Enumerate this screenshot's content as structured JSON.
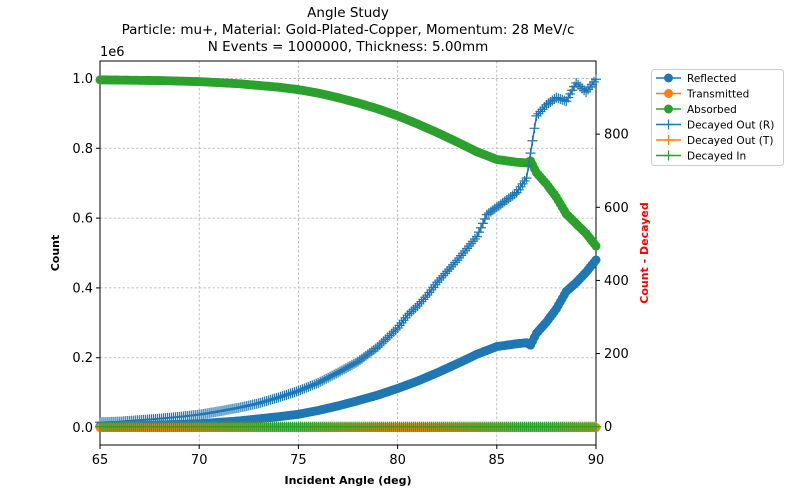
{
  "chart_data": {
    "type": "line",
    "title_lines": [
      "Angle Study",
      "Particle: mu+, Material: Gold-Plated-Copper, Momentum: 28 MeV/c",
      "N Events = 1000000, Thickness: 5.00mm"
    ],
    "xlabel": "Incident Angle (deg)",
    "ylabel_left": "Count",
    "ylabel_right": "Count - Decayed",
    "y_left_offset_label": "1e6",
    "xlim": [
      65,
      90
    ],
    "ylim_left": [
      -0.05,
      1.05
    ],
    "ylim_right": [
      -50,
      1000
    ],
    "x_ticks": [
      "65",
      "70",
      "75",
      "80",
      "85",
      "90"
    ],
    "y_left_ticks": [
      "0.0",
      "0.2",
      "0.4",
      "0.6",
      "0.8",
      "1.0"
    ],
    "y_right_ticks": [
      "0",
      "200",
      "400",
      "600",
      "800"
    ],
    "grid": true,
    "legend_position": "outside-right",
    "colors": {
      "blue": "#1f77b4",
      "orange": "#ff7f0e",
      "green": "#2ca02c",
      "right_label": "#ff0000"
    },
    "series_left": [
      {
        "name": "Reflected",
        "color": "#1f77b4",
        "marker": "circle",
        "points": [
          [
            65,
            0.004
          ],
          [
            67,
            0.006
          ],
          [
            69,
            0.009
          ],
          [
            70,
            0.011
          ],
          [
            71,
            0.015
          ],
          [
            72,
            0.019
          ],
          [
            73,
            0.025
          ],
          [
            74,
            0.031
          ],
          [
            75,
            0.038
          ],
          [
            76,
            0.049
          ],
          [
            77,
            0.062
          ],
          [
            78,
            0.077
          ],
          [
            79,
            0.093
          ],
          [
            80,
            0.112
          ],
          [
            81,
            0.133
          ],
          [
            82,
            0.157
          ],
          [
            83,
            0.183
          ],
          [
            84,
            0.21
          ],
          [
            85,
            0.232
          ],
          [
            86,
            0.24
          ],
          [
            86.5,
            0.243
          ],
          [
            86.7,
            0.236
          ],
          [
            87,
            0.27
          ],
          [
            87.5,
            0.302
          ],
          [
            88,
            0.34
          ],
          [
            88.5,
            0.39
          ],
          [
            89,
            0.415
          ],
          [
            89.5,
            0.445
          ],
          [
            90,
            0.48
          ]
        ]
      },
      {
        "name": "Transmitted",
        "color": "#ff7f0e",
        "marker": "circle",
        "points": [
          [
            65,
            0
          ],
          [
            90,
            0
          ]
        ]
      },
      {
        "name": "Absorbed",
        "color": "#2ca02c",
        "marker": "circle",
        "points": [
          [
            65,
            0.996
          ],
          [
            68,
            0.994
          ],
          [
            70,
            0.991
          ],
          [
            72,
            0.985
          ],
          [
            74,
            0.975
          ],
          [
            75,
            0.968
          ],
          [
            76,
            0.958
          ],
          [
            77,
            0.945
          ],
          [
            78,
            0.93
          ],
          [
            79,
            0.913
          ],
          [
            80,
            0.893
          ],
          [
            81,
            0.87
          ],
          [
            82,
            0.845
          ],
          [
            83,
            0.818
          ],
          [
            84,
            0.79
          ],
          [
            85,
            0.768
          ],
          [
            86,
            0.76
          ],
          [
            86.5,
            0.758
          ],
          [
            86.7,
            0.764
          ],
          [
            87,
            0.73
          ],
          [
            87.5,
            0.698
          ],
          [
            88,
            0.66
          ],
          [
            88.5,
            0.612
          ],
          [
            89,
            0.584
          ],
          [
            89.5,
            0.556
          ],
          [
            90,
            0.52
          ]
        ]
      }
    ],
    "series_right": [
      {
        "name": "Decayed Out (R)",
        "color": "#1f77b4",
        "marker": "plus",
        "points": [
          [
            65,
            12
          ],
          [
            66,
            14
          ],
          [
            67,
            18
          ],
          [
            68,
            22
          ],
          [
            69,
            27
          ],
          [
            70,
            33
          ],
          [
            71,
            42
          ],
          [
            72,
            52
          ],
          [
            73,
            64
          ],
          [
            74,
            80
          ],
          [
            75,
            98
          ],
          [
            76,
            120
          ],
          [
            77,
            148
          ],
          [
            78,
            178
          ],
          [
            79,
            218
          ],
          [
            80,
            270
          ],
          [
            80.5,
            305
          ],
          [
            81,
            330
          ],
          [
            81.5,
            360
          ],
          [
            82,
            395
          ],
          [
            83,
            455
          ],
          [
            84,
            520
          ],
          [
            84.5,
            580
          ],
          [
            85,
            600
          ],
          [
            85.5,
            620
          ],
          [
            86,
            640
          ],
          [
            86.5,
            680
          ],
          [
            87,
            850
          ],
          [
            87.5,
            880
          ],
          [
            88,
            900
          ],
          [
            88.5,
            890
          ],
          [
            89,
            940
          ],
          [
            89.5,
            915
          ],
          [
            90,
            950
          ]
        ]
      },
      {
        "name": "Decayed Out (T)",
        "color": "#ff7f0e",
        "marker": "plus",
        "points": [
          [
            65,
            0
          ],
          [
            90,
            0
          ]
        ]
      },
      {
        "name": "Decayed In",
        "color": "#2ca02c",
        "marker": "plus",
        "points": [
          [
            65,
            0
          ],
          [
            90,
            0
          ]
        ]
      }
    ]
  }
}
